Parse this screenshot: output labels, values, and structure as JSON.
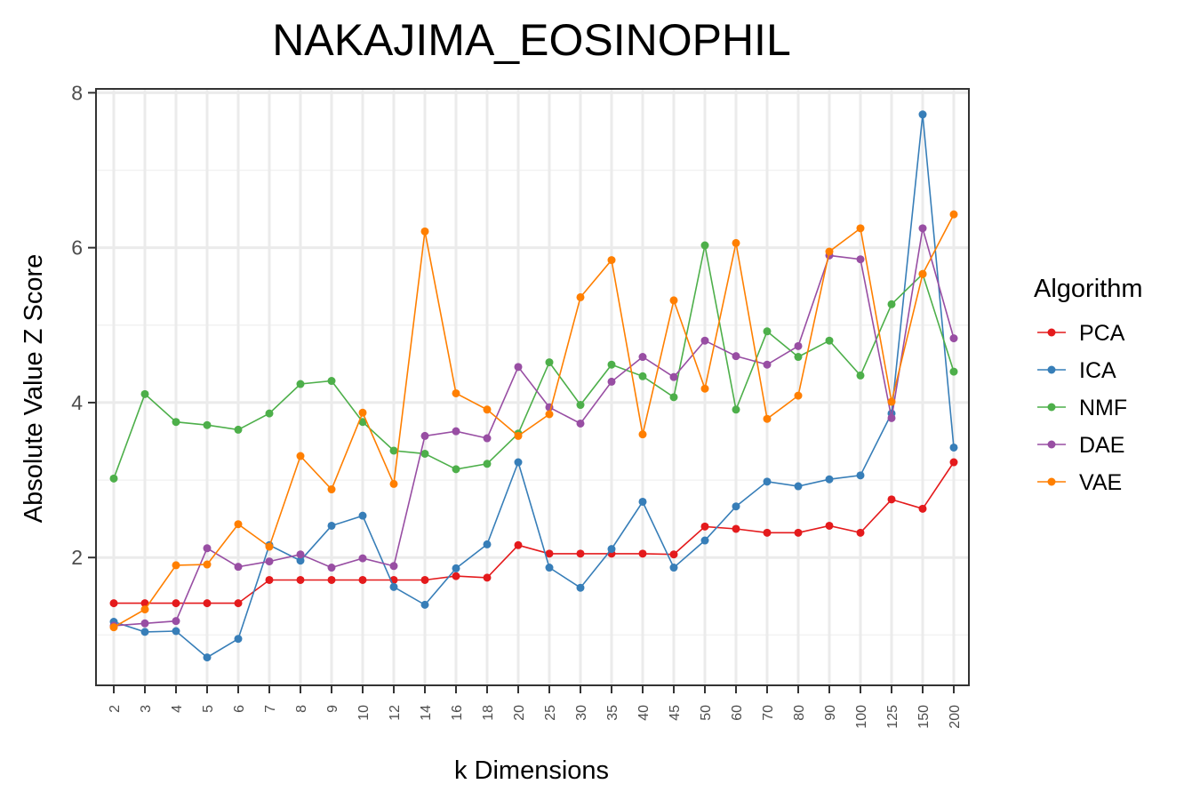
{
  "chart_data": {
    "type": "line",
    "title": "NAKAJIMA_EOSINOPHIL",
    "xlabel": "k Dimensions",
    "ylabel": "Absolute Value Z Score",
    "categories": [
      "2",
      "3",
      "4",
      "5",
      "6",
      "7",
      "8",
      "9",
      "10",
      "12",
      "14",
      "16",
      "18",
      "20",
      "25",
      "30",
      "35",
      "40",
      "45",
      "50",
      "60",
      "70",
      "80",
      "90",
      "100",
      "125",
      "150",
      "200"
    ],
    "ylim": [
      0.35,
      8.05
    ],
    "yticks": [
      2,
      4,
      6,
      8
    ],
    "grid": true,
    "legend": {
      "title": "Algorithm",
      "position": "right"
    },
    "series": [
      {
        "name": "PCA",
        "color": "#e41a1c",
        "values": [
          1.41,
          1.41,
          1.41,
          1.41,
          1.41,
          1.71,
          1.71,
          1.71,
          1.71,
          1.71,
          1.71,
          1.76,
          1.74,
          2.16,
          2.05,
          2.05,
          2.05,
          2.05,
          2.04,
          2.4,
          2.37,
          2.32,
          2.32,
          2.41,
          2.32,
          2.75,
          2.63,
          3.23
        ]
      },
      {
        "name": "ICA",
        "color": "#377eb8",
        "values": [
          1.17,
          1.04,
          1.05,
          0.71,
          0.95,
          2.16,
          1.96,
          2.41,
          2.54,
          1.62,
          1.39,
          1.86,
          2.17,
          3.23,
          1.87,
          1.61,
          2.11,
          2.72,
          1.87,
          2.22,
          2.66,
          2.98,
          2.92,
          3.01,
          3.06,
          3.86,
          7.72,
          3.42
        ]
      },
      {
        "name": "NMF",
        "color": "#4daf4a",
        "values": [
          3.02,
          4.11,
          3.75,
          3.71,
          3.65,
          3.86,
          4.24,
          4.28,
          3.75,
          3.38,
          3.34,
          3.14,
          3.21,
          3.6,
          4.52,
          3.97,
          4.49,
          4.34,
          4.07,
          6.03,
          3.91,
          4.92,
          4.59,
          4.8,
          4.35,
          5.27,
          5.66,
          4.4
        ]
      },
      {
        "name": "DAE",
        "color": "#984ea3",
        "values": [
          1.12,
          1.15,
          1.18,
          2.12,
          1.88,
          1.95,
          2.04,
          1.87,
          1.99,
          1.89,
          3.57,
          3.63,
          3.54,
          4.46,
          3.94,
          3.73,
          4.27,
          4.59,
          4.33,
          4.8,
          4.6,
          4.49,
          4.73,
          5.9,
          5.85,
          3.8,
          6.25,
          4.83
        ]
      },
      {
        "name": "VAE",
        "color": "#ff7f00",
        "values": [
          1.1,
          1.33,
          1.9,
          1.91,
          2.43,
          2.14,
          3.31,
          2.88,
          3.87,
          2.95,
          6.21,
          4.12,
          3.91,
          3.57,
          3.85,
          5.36,
          5.84,
          3.59,
          5.32,
          4.18,
          6.06,
          3.79,
          4.09,
          5.95,
          6.25,
          4.01,
          5.66,
          6.43
        ]
      }
    ]
  }
}
